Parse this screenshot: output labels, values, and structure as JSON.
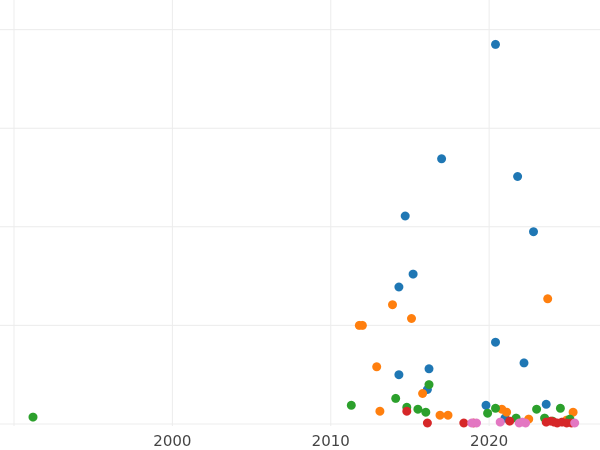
{
  "chart_data": {
    "type": "scatter",
    "title": "",
    "xlabel": "",
    "ylabel": "",
    "x_ticks": [
      "2000",
      "2010",
      "2020"
    ],
    "x_tick_values": [
      2000,
      2010,
      2020
    ],
    "y_tick_values": [
      0,
      100,
      200,
      300,
      400
    ],
    "xlim": [
      1990,
      2027
    ],
    "ylim": [
      -2,
      430
    ],
    "grid": true,
    "legend": "none",
    "series": [
      {
        "color": "#1f77b4",
        "points": [
          [
            2020.4,
            385
          ],
          [
            2017.0,
            269
          ],
          [
            2021.8,
            251
          ],
          [
            2014.7,
            211
          ],
          [
            2022.8,
            195
          ],
          [
            2015.2,
            152
          ],
          [
            2014.3,
            139
          ],
          [
            2020.4,
            83
          ],
          [
            2022.2,
            62
          ],
          [
            2016.2,
            56
          ],
          [
            2014.3,
            50
          ],
          [
            2023.6,
            20
          ],
          [
            2019.8,
            19
          ],
          [
            2016.1,
            35
          ],
          [
            2021.0,
            6
          ]
        ]
      },
      {
        "color": "#ff7f0e",
        "points": [
          [
            2023.7,
            127
          ],
          [
            2013.9,
            121
          ],
          [
            2015.1,
            107
          ],
          [
            2011.8,
            100
          ],
          [
            2012.0,
            100
          ],
          [
            2012.9,
            58
          ],
          [
            2015.8,
            31
          ],
          [
            2013.1,
            13
          ],
          [
            2016.9,
            9
          ],
          [
            2017.4,
            9
          ],
          [
            2021.1,
            12
          ],
          [
            2025.3,
            12
          ],
          [
            2020.8,
            15
          ],
          [
            2022.5,
            5
          ],
          [
            2024.9,
            4
          ]
        ]
      },
      {
        "color": "#2ca02c",
        "points": [
          [
            1991.2,
            7
          ],
          [
            2011.3,
            19
          ],
          [
            2014.1,
            26
          ],
          [
            2016.2,
            40
          ],
          [
            2014.8,
            17
          ],
          [
            2015.5,
            15
          ],
          [
            2016.0,
            12
          ],
          [
            2020.4,
            16
          ],
          [
            2019.9,
            11
          ],
          [
            2023.0,
            15
          ],
          [
            2024.5,
            16
          ],
          [
            2023.5,
            6
          ],
          [
            2021.7,
            6
          ],
          [
            2024.0,
            3
          ],
          [
            2025.1,
            5
          ]
        ]
      },
      {
        "color": "#d62728",
        "points": [
          [
            2014.8,
            13
          ],
          [
            2016.1,
            1
          ],
          [
            2018.4,
            1
          ],
          [
            2019.0,
            1
          ],
          [
            2021.3,
            3
          ],
          [
            2023.9,
            3
          ],
          [
            2024.1,
            2
          ],
          [
            2024.3,
            1
          ],
          [
            2024.6,
            2
          ],
          [
            2024.9,
            1
          ],
          [
            2023.6,
            2
          ],
          [
            2025.2,
            1
          ]
        ]
      },
      {
        "color": "#e377c2",
        "points": [
          [
            2019.2,
            1
          ],
          [
            2020.7,
            2
          ],
          [
            2021.9,
            1
          ],
          [
            2022.3,
            1
          ],
          [
            2025.4,
            1
          ],
          [
            2018.9,
            1
          ],
          [
            2022.1,
            2
          ]
        ]
      }
    ]
  }
}
